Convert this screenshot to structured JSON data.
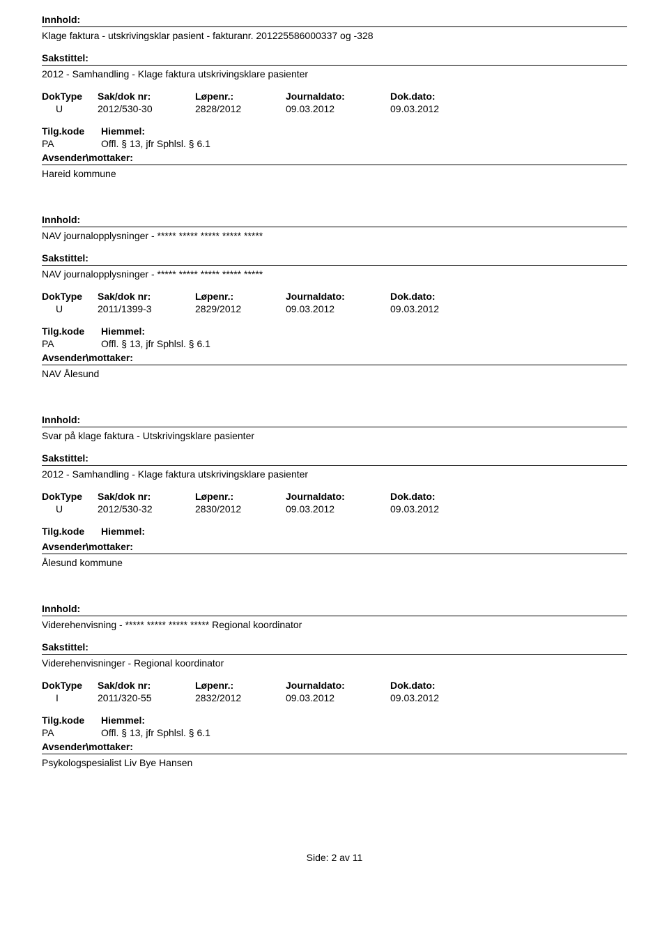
{
  "labels": {
    "innhold": "Innhold:",
    "sakstittel": "Sakstittel:",
    "doktype": "DokType",
    "sakdoknr": "Sak/dok nr:",
    "lopenr": "Løpenr.:",
    "journaldato": "Journaldato:",
    "dokdato": "Dok.dato:",
    "tilgkode": "Tilg.kode",
    "hiemmel": "Hiemmel:",
    "avsender": "Avsender\\mottaker:"
  },
  "records": [
    {
      "innhold": "Klage faktura - utskrivingsklar pasient - fakturanr. 201225586000337 og -328",
      "sakstittel": "2012 - Samhandling - Klage faktura utskrivingsklare pasienter",
      "doktype": "U",
      "sakdoknr": "2012/530-30",
      "lopenr": "2828/2012",
      "journaldato": "09.03.2012",
      "dokdato": "09.03.2012",
      "tilgkode": "PA",
      "hiemmel": "Offl. § 13, jfr Sphlsl. § 6.1",
      "avsender": "Hareid kommune"
    },
    {
      "innhold": "NAV journalopplysninger - ***** ***** ***** ***** *****",
      "sakstittel": "NAV journalopplysninger - ***** ***** ***** ***** *****",
      "doktype": "U",
      "sakdoknr": "2011/1399-3",
      "lopenr": "2829/2012",
      "journaldato": "09.03.2012",
      "dokdato": "09.03.2012",
      "tilgkode": "PA",
      "hiemmel": "Offl. § 13, jfr Sphlsl. § 6.1",
      "avsender": "NAV Ålesund"
    },
    {
      "innhold": "Svar på klage faktura  -  Utskrivingsklare pasienter",
      "sakstittel": "2012 - Samhandling - Klage faktura utskrivingsklare pasienter",
      "doktype": "U",
      "sakdoknr": "2012/530-32",
      "lopenr": "2830/2012",
      "journaldato": "09.03.2012",
      "dokdato": "09.03.2012",
      "tilgkode": "",
      "hiemmel": "",
      "avsender": "Ålesund kommune"
    },
    {
      "innhold": "Viderehenvisning - ***** ***** ***** ***** Regional koordinator",
      "sakstittel": "Viderehenvisninger - Regional koordinator",
      "doktype": "I",
      "sakdoknr": "2011/320-55",
      "lopenr": "2832/2012",
      "journaldato": "09.03.2012",
      "dokdato": "09.03.2012",
      "tilgkode": "PA",
      "hiemmel": "Offl. § 13, jfr Sphlsl. § 6.1",
      "avsender": "Psykologspesialist Liv Bye Hansen"
    }
  ],
  "footer": "Side: 2 av 11"
}
